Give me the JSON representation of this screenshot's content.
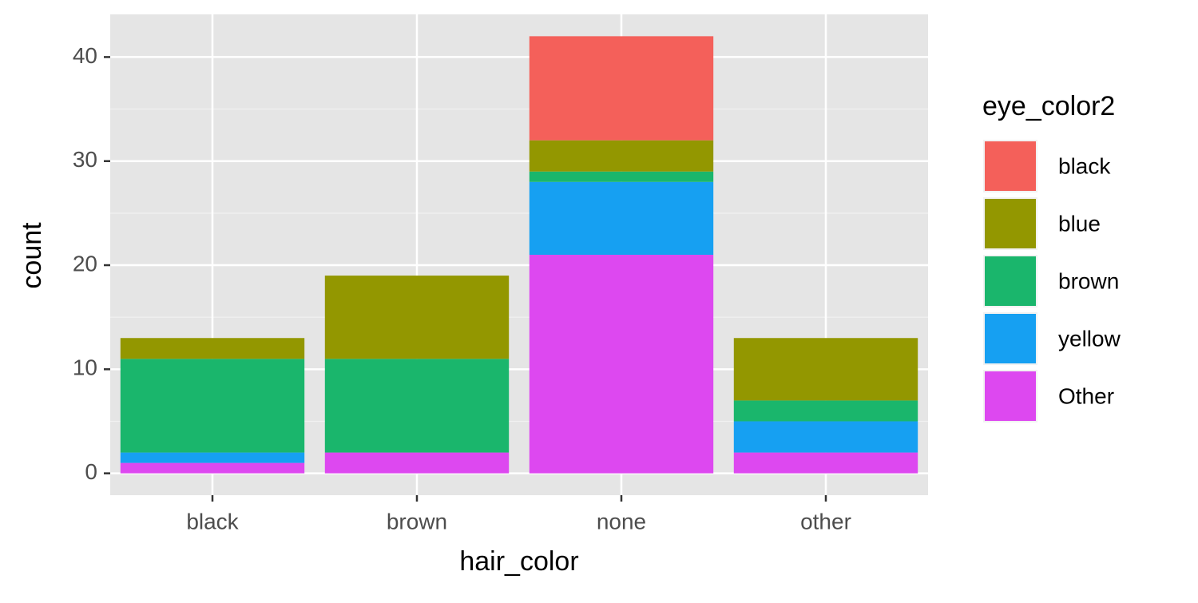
{
  "chart_data": {
    "type": "stacked_bar",
    "x_label": "hair_color",
    "y_label": "count",
    "legend_title": "eye_color2",
    "categories": [
      "black",
      "brown",
      "none",
      "other"
    ],
    "series": [
      {
        "name": "black",
        "color": "#f4605a",
        "values": [
          0,
          0,
          10,
          0
        ]
      },
      {
        "name": "blue",
        "color": "#939700",
        "values": [
          2,
          8,
          3,
          6
        ]
      },
      {
        "name": "brown",
        "color": "#1ab66c",
        "values": [
          9,
          9,
          1,
          2
        ]
      },
      {
        "name": "yellow",
        "color": "#16a0f2",
        "values": [
          1,
          0,
          7,
          3
        ]
      },
      {
        "name": "Other",
        "color": "#dd48f0",
        "values": [
          1,
          2,
          21,
          2
        ]
      }
    ],
    "ylim": [
      -2.1,
      44.1
    ],
    "yticks": [
      0,
      10,
      20,
      30,
      40
    ],
    "grid": true,
    "legend": "right"
  }
}
